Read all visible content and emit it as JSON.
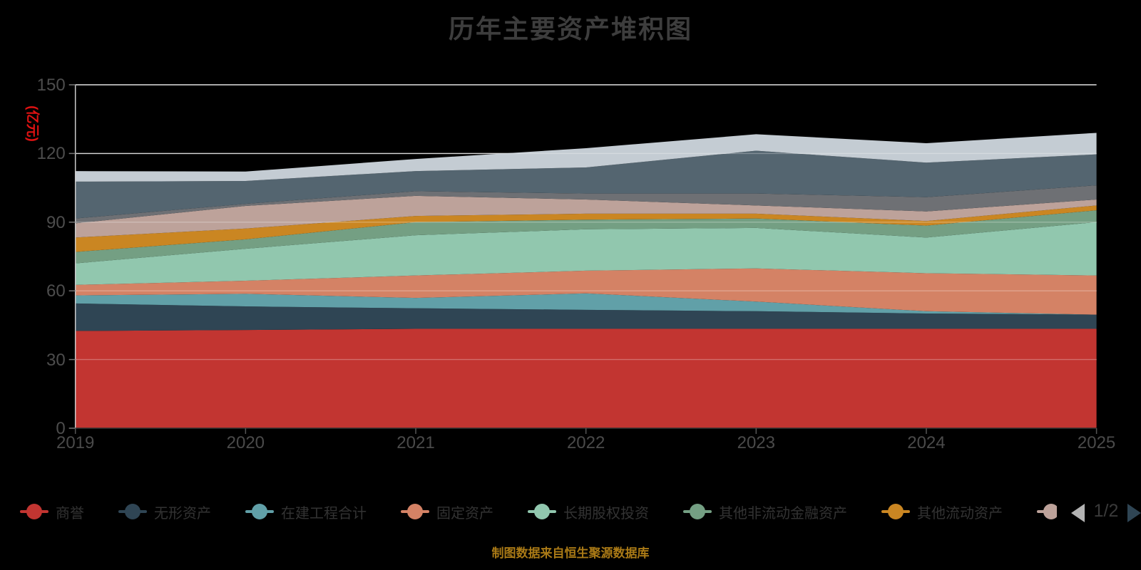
{
  "title": "历年主要资产堆积图",
  "y_axis_name": "(亿元)",
  "footer": "制图数据来自恒生聚源数据库",
  "legend": {
    "pager": {
      "label": "1/2",
      "prev_icon": "left-triangle",
      "next_icon": "right-triangle",
      "prev_color": "#b3b3b3",
      "next_color": "#2f4554"
    },
    "max_visible_items": 8,
    "partial_next_item_color": "#bda29a"
  },
  "colors": {
    "background": "#000000",
    "title_text": "#3d3d3d",
    "axis_label_text": "#4d4d4d",
    "legend_text": "#333333",
    "y_axis_name_text": "#e01212",
    "footer_text": "#aa7a16",
    "gridline": "#c9c9c9",
    "gridline_overlay": "rgba(255,255,255,0.28)",
    "y_axis_line": "#cccccc",
    "x_axis_line": "#333333"
  },
  "chart_data": {
    "type": "area",
    "stacked": true,
    "grid": true,
    "legend_position": "bottom",
    "title": "历年主要资产堆积图",
    "xlabel": "",
    "ylabel": "(亿元)",
    "ylim": [
      0,
      150
    ],
    "ytick_interval": 30,
    "yticks": [
      0,
      30,
      60,
      90,
      120,
      150
    ],
    "categories": [
      "2019",
      "2020",
      "2021",
      "2022",
      "2023",
      "2024",
      "2025"
    ],
    "series": [
      {
        "name": "商誉",
        "color": "#c23531",
        "values": [
          42.5,
          42.9,
          43.4,
          43.4,
          43.4,
          43.4,
          43.4
        ]
      },
      {
        "name": "无形资产",
        "color": "#2f4554",
        "values": [
          12.0,
          10.3,
          9.0,
          8.3,
          7.7,
          6.7,
          6.2
        ]
      },
      {
        "name": "在建工程合计",
        "color": "#61a0a8",
        "values": [
          3.5,
          5.5,
          4.5,
          7.2,
          4.2,
          1.0,
          0.0
        ]
      },
      {
        "name": "固定资产",
        "color": "#d48265",
        "values": [
          4.6,
          5.7,
          9.8,
          9.9,
          14.5,
          16.6,
          17.1
        ]
      },
      {
        "name": "长期股权投资",
        "color": "#91c7ae",
        "values": [
          9.4,
          14.0,
          17.6,
          18.1,
          17.7,
          15.6,
          23.3
        ]
      },
      {
        "name": "其他非流动金融资产",
        "color": "#749f83",
        "values": [
          5.0,
          4.1,
          5.7,
          4.2,
          4.1,
          5.2,
          5.2
        ]
      },
      {
        "name": "其他流动资产",
        "color": "#ca8622",
        "values": [
          6.3,
          4.7,
          2.7,
          2.6,
          2.1,
          2.0,
          2.1
        ]
      },
      {
        "name": "",
        "color": "#bda29a",
        "values": [
          6.2,
          9.9,
          8.8,
          6.2,
          3.6,
          4.2,
          2.6
        ]
      },
      {
        "name": "",
        "color": "#6e7074",
        "values": [
          2.1,
          0.9,
          2.0,
          2.6,
          5.2,
          6.2,
          6.2
        ]
      },
      {
        "name": "",
        "color": "#546570",
        "values": [
          16.1,
          10.0,
          8.8,
          11.4,
          18.7,
          15.1,
          13.5
        ]
      },
      {
        "name": "",
        "color": "#c4ccd3",
        "values": [
          4.6,
          4.1,
          5.3,
          8.4,
          7.2,
          8.5,
          9.4
        ]
      }
    ]
  }
}
